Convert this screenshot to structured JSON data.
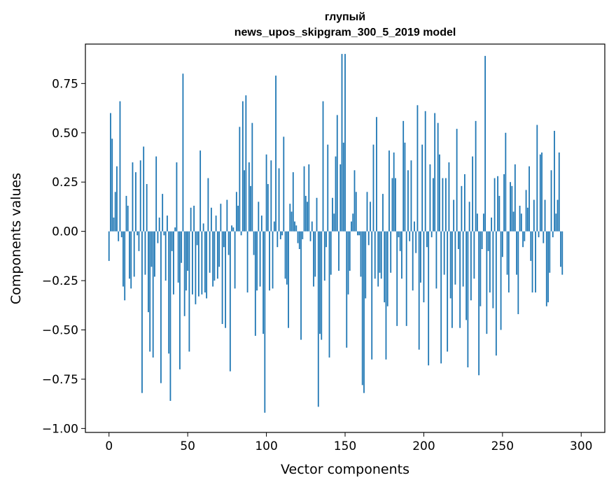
{
  "chart_data": {
    "type": "bar",
    "title_lines": [
      "глупый",
      "news_upos_skipgram_300_5_2019 model"
    ],
    "xlabel": "Vector components",
    "ylabel": "Components values",
    "xlim": [
      -15,
      315
    ],
    "ylim": [
      -1.02,
      0.95
    ],
    "xticks": [
      0,
      50,
      100,
      150,
      200,
      250,
      300
    ],
    "yticks": [
      -1.0,
      -0.75,
      -0.5,
      -0.25,
      0.0,
      0.25,
      0.5,
      0.75
    ],
    "ytick_labels": [
      "−1.00",
      "−0.75",
      "−0.50",
      "−0.25",
      "0.00",
      "0.25",
      "0.50",
      "0.75"
    ],
    "bar_color": "#1f77b4",
    "grid": false,
    "values": [
      -0.15,
      0.6,
      0.47,
      0.07,
      0.2,
      0.33,
      -0.05,
      0.66,
      -0.03,
      -0.28,
      -0.35,
      0.18,
      0.13,
      -0.24,
      -0.29,
      0.35,
      -0.23,
      0.3,
      -0.02,
      -0.1,
      0.36,
      -0.82,
      0.43,
      -0.22,
      0.24,
      -0.41,
      -0.61,
      -0.18,
      -0.64,
      -0.23,
      0.38,
      -0.06,
      0.07,
      -0.77,
      0.19,
      -0.02,
      -0.25,
      0.08,
      -0.62,
      -0.86,
      -0.1,
      -0.32,
      0.02,
      0.35,
      -0.26,
      -0.7,
      -0.16,
      0.8,
      -0.43,
      -0.3,
      -0.2,
      -0.61,
      0.12,
      -0.32,
      0.13,
      -0.37,
      -0.07,
      -0.33,
      0.41,
      -0.32,
      0.04,
      -0.31,
      -0.34,
      0.27,
      -0.21,
      0.12,
      -0.28,
      -0.25,
      0.08,
      -0.24,
      -0.18,
      0.14,
      -0.47,
      -0.08,
      -0.49,
      0.16,
      -0.12,
      -0.71,
      0.03,
      0.02,
      -0.29,
      0.2,
      0.13,
      0.53,
      -0.02,
      0.66,
      0.31,
      0.69,
      -0.31,
      0.35,
      0.23,
      0.55,
      -0.12,
      -0.53,
      -0.3,
      0.15,
      -0.28,
      0.08,
      -0.52,
      -0.92,
      0.39,
      0.24,
      -0.3,
      0.36,
      -0.29,
      0.05,
      0.79,
      -0.08,
      0.32,
      -0.04,
      -0.02,
      0.48,
      -0.24,
      -0.27,
      -0.49,
      0.14,
      0.1,
      0.3,
      0.05,
      0.03,
      -0.06,
      -0.09,
      -0.55,
      -0.04,
      0.33,
      0.18,
      0.15,
      0.34,
      -0.05,
      0.05,
      -0.28,
      -0.23,
      0.17,
      -0.89,
      -0.52,
      -0.55,
      0.66,
      -0.25,
      -0.08,
      0.44,
      -0.64,
      -0.22,
      0.17,
      0.09,
      0.38,
      0.59,
      -0.2,
      0.34,
      0.9,
      0.45,
      0.9,
      -0.59,
      -0.32,
      -0.2,
      0.05,
      0.09,
      0.31,
      0.2,
      -0.02,
      -0.02,
      -0.23,
      -0.78,
      -0.82,
      -0.34,
      0.2,
      -0.07,
      0.15,
      -0.65,
      0.44,
      -0.24,
      0.58,
      -0.28,
      -0.21,
      -0.24,
      0.19,
      -0.36,
      -0.65,
      -0.38,
      0.41,
      -0.21,
      0.27,
      0.4,
      0.27,
      -0.48,
      -0.03,
      -0.1,
      -0.24,
      0.56,
      0.45,
      -0.48,
      0.31,
      -0.05,
      0.36,
      -0.3,
      0.05,
      -0.11,
      0.64,
      -0.6,
      -0.26,
      0.44,
      -0.36,
      0.61,
      -0.08,
      -0.68,
      0.34,
      -0.03,
      0.27,
      0.6,
      -0.29,
      0.55,
      0.39,
      -0.67,
      0.27,
      -0.22,
      0.27,
      -0.61,
      0.35,
      -0.34,
      -0.49,
      0.16,
      -0.27,
      0.52,
      -0.09,
      -0.49,
      0.23,
      -0.28,
      0.29,
      -0.45,
      -0.69,
      0.15,
      -0.35,
      0.38,
      -0.24,
      0.56,
      0.09,
      -0.73,
      -0.38,
      -0.09,
      0.09,
      0.89,
      -0.52,
      -0.1,
      -0.31,
      0.07,
      -0.39,
      0.27,
      -0.63,
      0.28,
      0.18,
      -0.5,
      -0.13,
      0.29,
      0.5,
      -0.22,
      -0.31,
      0.25,
      0.23,
      0.1,
      0.34,
      -0.22,
      -0.42,
      0.13,
      0.09,
      -0.08,
      -0.05,
      0.21,
      0.12,
      0.33,
      -0.15,
      -0.31,
      0.16,
      -0.31,
      0.54,
      -0.03,
      0.39,
      0.4,
      -0.06,
      0.16,
      -0.38,
      -0.36,
      -0.21,
      0.31,
      -0.03,
      0.51,
      0.09,
      0.16,
      0.4,
      -0.18,
      -0.22
    ]
  }
}
